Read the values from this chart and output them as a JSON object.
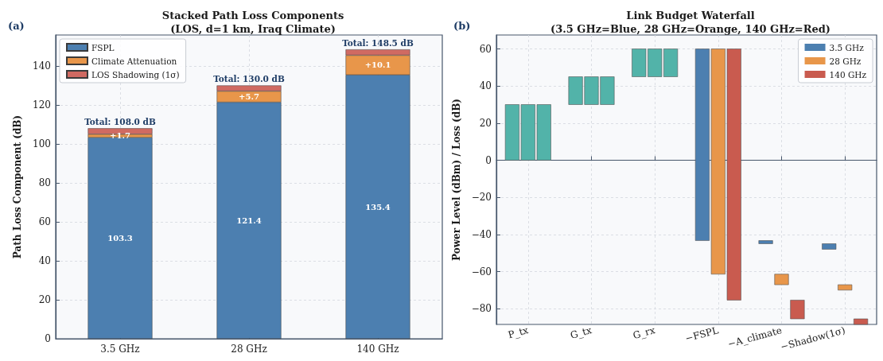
{
  "chart_data": [
    {
      "type": "bar",
      "title": "Stacked Path Loss Components\n(LOS, d=1 km, Iraq Climate)",
      "ylabel": "Path Loss Component (dB)",
      "annotations": [
        "(a)"
      ],
      "categories": [
        "3.5 GHz",
        "28 GHz",
        "140 GHz"
      ],
      "stacked": true,
      "series": [
        {
          "name": "FSPL",
          "color": "#4c7fb0",
          "values": [
            103.3,
            121.4,
            135.4
          ],
          "value_labels": [
            "103.3",
            "121.4",
            "135.4"
          ]
        },
        {
          "name": "Climate Attenuation",
          "color": "#e8964a",
          "values": [
            1.7,
            5.7,
            10.1
          ],
          "value_labels": [
            "+1.7",
            "+5.7",
            "+10.1"
          ]
        },
        {
          "name": "LOS Shadowing (1σ)",
          "color": "#d06a62",
          "values": [
            3.0,
            2.9,
            3.0
          ]
        }
      ],
      "totals": [
        "Total: 108.0 dB",
        "Total: 130.0 dB",
        "Total: 148.5 dB"
      ],
      "ylim": [
        0,
        155.9
      ],
      "yticks": [
        0,
        20,
        40,
        60,
        80,
        100,
        120,
        140
      ],
      "grid": true,
      "legend": "top left"
    },
    {
      "type": "bar",
      "title": "Link Budget Waterfall\n(3.5 GHz=Blue, 28 GHz=Orange, 140 GHz=Red)",
      "ylabel": "Power Level (dBm) / Loss (dB)",
      "annotations": [
        "(b)"
      ],
      "categories": [
        "P_tx",
        "G_tx",
        "G_rx",
        "−FSPL",
        "−A_climate",
        "−Shadow(1σ)"
      ],
      "series": [
        {
          "name": "3.5 GHz",
          "color": "#4c7fb0",
          "colors": [
            "#52b3a9",
            "#52b3a9",
            "#52b3a9",
            "#4c7fb0",
            "#4c7fb0",
            "#4c7fb0"
          ],
          "base": [
            0,
            30,
            45,
            60,
            -43.3,
            -45.0
          ],
          "values": [
            30,
            15,
            15,
            -103.3,
            -1.7,
            -3.0
          ]
        },
        {
          "name": "28 GHz",
          "color": "#e8964a",
          "colors": [
            "#52b3a9",
            "#52b3a9",
            "#52b3a9",
            "#e8964a",
            "#e8964a",
            "#e8964a"
          ],
          "base": [
            0,
            30,
            45,
            60,
            -61.4,
            -67.1
          ],
          "values": [
            30,
            15,
            15,
            -121.4,
            -5.7,
            -2.9
          ]
        },
        {
          "name": "140 GHz",
          "color": "#c95b4f",
          "colors": [
            "#52b3a9",
            "#52b3a9",
            "#52b3a9",
            "#c95b4f",
            "#c95b4f",
            "#c95b4f"
          ],
          "base": [
            0,
            30,
            45,
            60,
            -75.4,
            -85.5
          ],
          "values": [
            30,
            15,
            15,
            -135.4,
            -10.1,
            -3.0
          ]
        }
      ],
      "ylim": [
        -88.5,
        67.5
      ],
      "yticks": [
        -80,
        -60,
        -40,
        -20,
        0,
        20,
        40,
        60
      ],
      "grid": true,
      "legend": "top right"
    }
  ]
}
